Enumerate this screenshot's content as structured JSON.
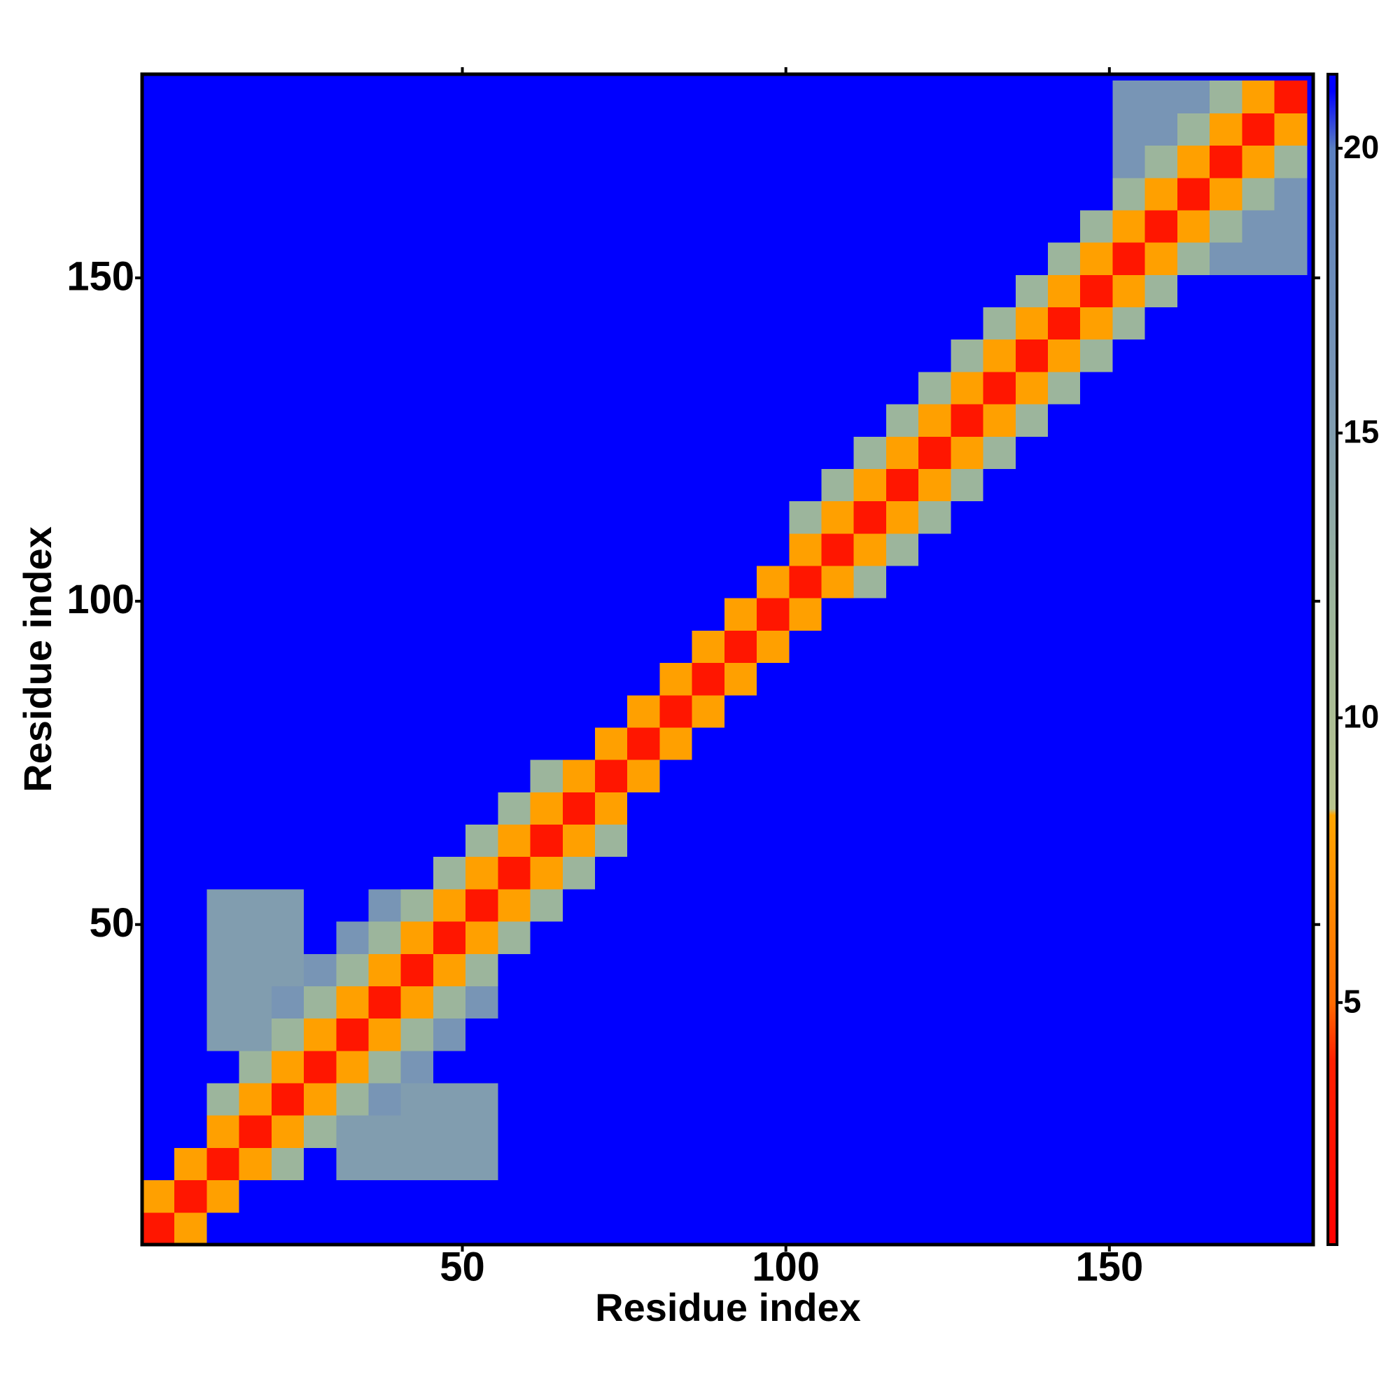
{
  "chart_data": {
    "type": "heatmap",
    "xlabel": "Residue index",
    "ylabel": "Residue index",
    "xlim": [
      0.5,
      181.5
    ],
    "ylim": [
      0.5,
      181.5
    ],
    "xticks": [
      50,
      100,
      150
    ],
    "yticks": [
      50,
      100,
      150
    ],
    "zlim": [
      0.75,
      21.3
    ],
    "zticks": [
      5,
      10,
      15,
      20
    ],
    "colorscale": [
      [
        0.75,
        "#ff0000"
      ],
      [
        4,
        "#ff2000"
      ],
      [
        5,
        "#ff6a00"
      ],
      [
        8.3,
        "#ffa500"
      ],
      [
        8.4,
        "#b8c48e"
      ],
      [
        12,
        "#9cb59c"
      ],
      [
        16,
        "#7895b5"
      ],
      [
        20,
        "#5a7fc0"
      ],
      [
        21,
        "#0000ff"
      ],
      [
        21.3,
        "#0000ff"
      ]
    ],
    "x": [
      3,
      8,
      13,
      18,
      23,
      28,
      33,
      38,
      43,
      48,
      53,
      58,
      63,
      68,
      73,
      78,
      83,
      88,
      93,
      98,
      103,
      108,
      113,
      118,
      123,
      128,
      133,
      138,
      143,
      148,
      153,
      158,
      163,
      168,
      173,
      178
    ],
    "y": [
      3,
      8,
      13,
      18,
      23,
      28,
      33,
      38,
      43,
      48,
      53,
      58,
      63,
      68,
      73,
      78,
      83,
      88,
      93,
      98,
      103,
      108,
      113,
      118,
      123,
      128,
      133,
      138,
      143,
      148,
      153,
      158,
      163,
      168,
      173,
      178
    ],
    "values": [
      [
        3,
        8,
        21,
        21,
        21,
        21,
        21,
        21,
        21,
        21,
        21,
        21,
        21,
        21,
        21,
        21,
        21,
        21,
        21,
        21,
        21,
        21,
        21,
        21,
        21,
        21,
        21,
        21,
        21,
        21,
        21,
        21,
        21,
        21,
        21,
        21
      ],
      [
        8,
        3,
        8,
        21,
        21,
        21,
        21,
        21,
        21,
        21,
        21,
        21,
        21,
        21,
        21,
        21,
        21,
        21,
        21,
        21,
        21,
        21,
        21,
        21,
        21,
        21,
        21,
        21,
        21,
        21,
        21,
        21,
        21,
        21,
        21,
        21
      ],
      [
        21,
        8,
        3,
        8,
        12,
        21,
        15,
        15,
        15,
        15,
        15,
        21,
        21,
        21,
        21,
        21,
        21,
        21,
        21,
        21,
        21,
        21,
        21,
        21,
        21,
        21,
        21,
        21,
        21,
        21,
        21,
        21,
        21,
        21,
        21,
        21
      ],
      [
        21,
        21,
        8,
        3,
        8,
        12,
        15,
        15,
        15,
        15,
        15,
        21,
        21,
        21,
        21,
        21,
        21,
        21,
        21,
        21,
        21,
        21,
        21,
        21,
        21,
        21,
        21,
        21,
        21,
        21,
        21,
        21,
        21,
        21,
        21,
        21
      ],
      [
        21,
        21,
        12,
        8,
        3,
        8,
        12,
        16,
        15,
        15,
        15,
        21,
        21,
        21,
        21,
        21,
        21,
        21,
        21,
        21,
        21,
        21,
        21,
        21,
        21,
        21,
        21,
        21,
        21,
        21,
        21,
        21,
        21,
        21,
        21,
        21
      ],
      [
        21,
        21,
        21,
        12,
        8,
        3,
        8,
        12,
        16,
        21,
        21,
        21,
        21,
        21,
        21,
        21,
        21,
        21,
        21,
        21,
        21,
        21,
        21,
        21,
        21,
        21,
        21,
        21,
        21,
        21,
        21,
        21,
        21,
        21,
        21,
        21
      ],
      [
        21,
        21,
        15,
        15,
        12,
        8,
        3,
        8,
        12,
        16,
        21,
        21,
        21,
        21,
        21,
        21,
        21,
        21,
        21,
        21,
        21,
        21,
        21,
        21,
        21,
        21,
        21,
        21,
        21,
        21,
        21,
        21,
        21,
        21,
        21,
        21
      ],
      [
        21,
        21,
        15,
        15,
        16,
        12,
        8,
        3,
        8,
        12,
        16,
        21,
        21,
        21,
        21,
        21,
        21,
        21,
        21,
        21,
        21,
        21,
        21,
        21,
        21,
        21,
        21,
        21,
        21,
        21,
        21,
        21,
        21,
        21,
        21,
        21
      ],
      [
        21,
        21,
        15,
        15,
        15,
        16,
        12,
        8,
        3,
        8,
        12,
        21,
        21,
        21,
        21,
        21,
        21,
        21,
        21,
        21,
        21,
        21,
        21,
        21,
        21,
        21,
        21,
        21,
        21,
        21,
        21,
        21,
        21,
        21,
        21,
        21
      ],
      [
        21,
        21,
        15,
        15,
        15,
        21,
        16,
        12,
        8,
        3,
        8,
        12,
        21,
        21,
        21,
        21,
        21,
        21,
        21,
        21,
        21,
        21,
        21,
        21,
        21,
        21,
        21,
        21,
        21,
        21,
        21,
        21,
        21,
        21,
        21,
        21
      ],
      [
        21,
        21,
        15,
        15,
        15,
        21,
        21,
        16,
        12,
        8,
        3,
        8,
        12,
        21,
        21,
        21,
        21,
        21,
        21,
        21,
        21,
        21,
        21,
        21,
        21,
        21,
        21,
        21,
        21,
        21,
        21,
        21,
        21,
        21,
        21,
        21
      ],
      [
        21,
        21,
        21,
        21,
        21,
        21,
        21,
        21,
        21,
        12,
        8,
        3,
        8,
        12,
        21,
        21,
        21,
        21,
        21,
        21,
        21,
        21,
        21,
        21,
        21,
        21,
        21,
        21,
        21,
        21,
        21,
        21,
        21,
        21,
        21,
        21
      ],
      [
        21,
        21,
        21,
        21,
        21,
        21,
        21,
        21,
        21,
        21,
        12,
        8,
        3,
        8,
        12,
        21,
        21,
        21,
        21,
        21,
        21,
        21,
        21,
        21,
        21,
        21,
        21,
        21,
        21,
        21,
        21,
        21,
        21,
        21,
        21,
        21
      ],
      [
        21,
        21,
        21,
        21,
        21,
        21,
        21,
        21,
        21,
        21,
        21,
        12,
        8,
        3,
        8,
        21,
        21,
        21,
        21,
        21,
        21,
        21,
        21,
        21,
        21,
        21,
        21,
        21,
        21,
        21,
        21,
        21,
        21,
        21,
        21,
        21
      ],
      [
        21,
        21,
        21,
        21,
        21,
        21,
        21,
        21,
        21,
        21,
        21,
        21,
        12,
        8,
        3,
        8,
        21,
        21,
        21,
        21,
        21,
        21,
        21,
        21,
        21,
        21,
        21,
        21,
        21,
        21,
        21,
        21,
        21,
        21,
        21,
        21
      ],
      [
        21,
        21,
        21,
        21,
        21,
        21,
        21,
        21,
        21,
        21,
        21,
        21,
        21,
        21,
        8,
        3,
        8,
        21,
        21,
        21,
        21,
        21,
        21,
        21,
        21,
        21,
        21,
        21,
        21,
        21,
        21,
        21,
        21,
        21,
        21,
        21
      ],
      [
        21,
        21,
        21,
        21,
        21,
        21,
        21,
        21,
        21,
        21,
        21,
        21,
        21,
        21,
        21,
        8,
        3,
        8,
        21,
        21,
        21,
        21,
        21,
        21,
        21,
        21,
        21,
        21,
        21,
        21,
        21,
        21,
        21,
        21,
        21,
        21
      ],
      [
        21,
        21,
        21,
        21,
        21,
        21,
        21,
        21,
        21,
        21,
        21,
        21,
        21,
        21,
        21,
        21,
        8,
        3,
        8,
        21,
        21,
        21,
        21,
        21,
        21,
        21,
        21,
        21,
        21,
        21,
        21,
        21,
        21,
        21,
        21,
        21
      ],
      [
        21,
        21,
        21,
        21,
        21,
        21,
        21,
        21,
        21,
        21,
        21,
        21,
        21,
        21,
        21,
        21,
        21,
        8,
        3,
        8,
        21,
        21,
        21,
        21,
        21,
        21,
        21,
        21,
        21,
        21,
        21,
        21,
        21,
        21,
        21,
        21
      ],
      [
        21,
        21,
        21,
        21,
        21,
        21,
        21,
        21,
        21,
        21,
        21,
        21,
        21,
        21,
        21,
        21,
        21,
        21,
        8,
        3,
        8,
        21,
        21,
        21,
        21,
        21,
        21,
        21,
        21,
        21,
        21,
        21,
        21,
        21,
        21,
        21
      ],
      [
        21,
        21,
        21,
        21,
        21,
        21,
        21,
        21,
        21,
        21,
        21,
        21,
        21,
        21,
        21,
        21,
        21,
        21,
        21,
        8,
        3,
        8,
        12,
        21,
        21,
        21,
        21,
        21,
        21,
        21,
        21,
        21,
        21,
        21,
        21,
        21
      ],
      [
        21,
        21,
        21,
        21,
        21,
        21,
        21,
        21,
        21,
        21,
        21,
        21,
        21,
        21,
        21,
        21,
        21,
        21,
        21,
        21,
        8,
        3,
        8,
        12,
        21,
        21,
        21,
        21,
        21,
        21,
        21,
        21,
        21,
        21,
        21,
        21
      ],
      [
        21,
        21,
        21,
        21,
        21,
        21,
        21,
        21,
        21,
        21,
        21,
        21,
        21,
        21,
        21,
        21,
        21,
        21,
        21,
        21,
        12,
        8,
        3,
        8,
        12,
        21,
        21,
        21,
        21,
        21,
        21,
        21,
        21,
        21,
        21,
        21
      ],
      [
        21,
        21,
        21,
        21,
        21,
        21,
        21,
        21,
        21,
        21,
        21,
        21,
        21,
        21,
        21,
        21,
        21,
        21,
        21,
        21,
        21,
        12,
        8,
        3,
        8,
        12,
        21,
        21,
        21,
        21,
        21,
        21,
        21,
        21,
        21,
        21
      ],
      [
        21,
        21,
        21,
        21,
        21,
        21,
        21,
        21,
        21,
        21,
        21,
        21,
        21,
        21,
        21,
        21,
        21,
        21,
        21,
        21,
        21,
        21,
        12,
        8,
        3,
        8,
        12,
        21,
        21,
        21,
        21,
        21,
        21,
        21,
        21,
        21
      ],
      [
        21,
        21,
        21,
        21,
        21,
        21,
        21,
        21,
        21,
        21,
        21,
        21,
        21,
        21,
        21,
        21,
        21,
        21,
        21,
        21,
        21,
        21,
        21,
        12,
        8,
        3,
        8,
        12,
        21,
        21,
        21,
        21,
        21,
        21,
        21,
        21
      ],
      [
        21,
        21,
        21,
        21,
        21,
        21,
        21,
        21,
        21,
        21,
        21,
        21,
        21,
        21,
        21,
        21,
        21,
        21,
        21,
        21,
        21,
        21,
        21,
        21,
        12,
        8,
        3,
        8,
        12,
        21,
        21,
        21,
        21,
        21,
        21,
        21
      ],
      [
        21,
        21,
        21,
        21,
        21,
        21,
        21,
        21,
        21,
        21,
        21,
        21,
        21,
        21,
        21,
        21,
        21,
        21,
        21,
        21,
        21,
        21,
        21,
        21,
        21,
        12,
        8,
        3,
        8,
        12,
        21,
        21,
        21,
        21,
        21,
        21
      ],
      [
        21,
        21,
        21,
        21,
        21,
        21,
        21,
        21,
        21,
        21,
        21,
        21,
        21,
        21,
        21,
        21,
        21,
        21,
        21,
        21,
        21,
        21,
        21,
        21,
        21,
        21,
        12,
        8,
        3,
        8,
        12,
        21,
        21,
        21,
        21,
        21
      ],
      [
        21,
        21,
        21,
        21,
        21,
        21,
        21,
        21,
        21,
        21,
        21,
        21,
        21,
        21,
        21,
        21,
        21,
        21,
        21,
        21,
        21,
        21,
        21,
        21,
        21,
        21,
        21,
        12,
        8,
        3,
        8,
        12,
        21,
        21,
        21,
        21
      ],
      [
        21,
        21,
        21,
        21,
        21,
        21,
        21,
        21,
        21,
        21,
        21,
        21,
        21,
        21,
        21,
        21,
        21,
        21,
        21,
        21,
        21,
        21,
        21,
        21,
        21,
        21,
        21,
        21,
        12,
        8,
        3,
        8,
        12,
        16,
        16,
        16
      ],
      [
        21,
        21,
        21,
        21,
        21,
        21,
        21,
        21,
        21,
        21,
        21,
        21,
        21,
        21,
        21,
        21,
        21,
        21,
        21,
        21,
        21,
        21,
        21,
        21,
        21,
        21,
        21,
        21,
        21,
        12,
        8,
        3,
        8,
        12,
        16,
        16
      ],
      [
        21,
        21,
        21,
        21,
        21,
        21,
        21,
        21,
        21,
        21,
        21,
        21,
        21,
        21,
        21,
        21,
        21,
        21,
        21,
        21,
        21,
        21,
        21,
        21,
        21,
        21,
        21,
        21,
        21,
        21,
        12,
        8,
        3,
        8,
        12,
        16
      ],
      [
        21,
        21,
        21,
        21,
        21,
        21,
        21,
        21,
        21,
        21,
        21,
        21,
        21,
        21,
        21,
        21,
        21,
        21,
        21,
        21,
        21,
        21,
        21,
        21,
        21,
        21,
        21,
        21,
        21,
        21,
        16,
        12,
        8,
        3,
        8,
        12
      ],
      [
        21,
        21,
        21,
        21,
        21,
        21,
        21,
        21,
        21,
        21,
        21,
        21,
        21,
        21,
        21,
        21,
        21,
        21,
        21,
        21,
        21,
        21,
        21,
        21,
        21,
        21,
        21,
        21,
        21,
        21,
        16,
        16,
        12,
        8,
        3,
        8
      ],
      [
        21,
        21,
        21,
        21,
        21,
        21,
        21,
        21,
        21,
        21,
        21,
        21,
        21,
        21,
        21,
        21,
        21,
        21,
        21,
        21,
        21,
        21,
        21,
        21,
        21,
        21,
        21,
        21,
        21,
        21,
        16,
        16,
        16,
        12,
        8,
        3
      ]
    ]
  }
}
